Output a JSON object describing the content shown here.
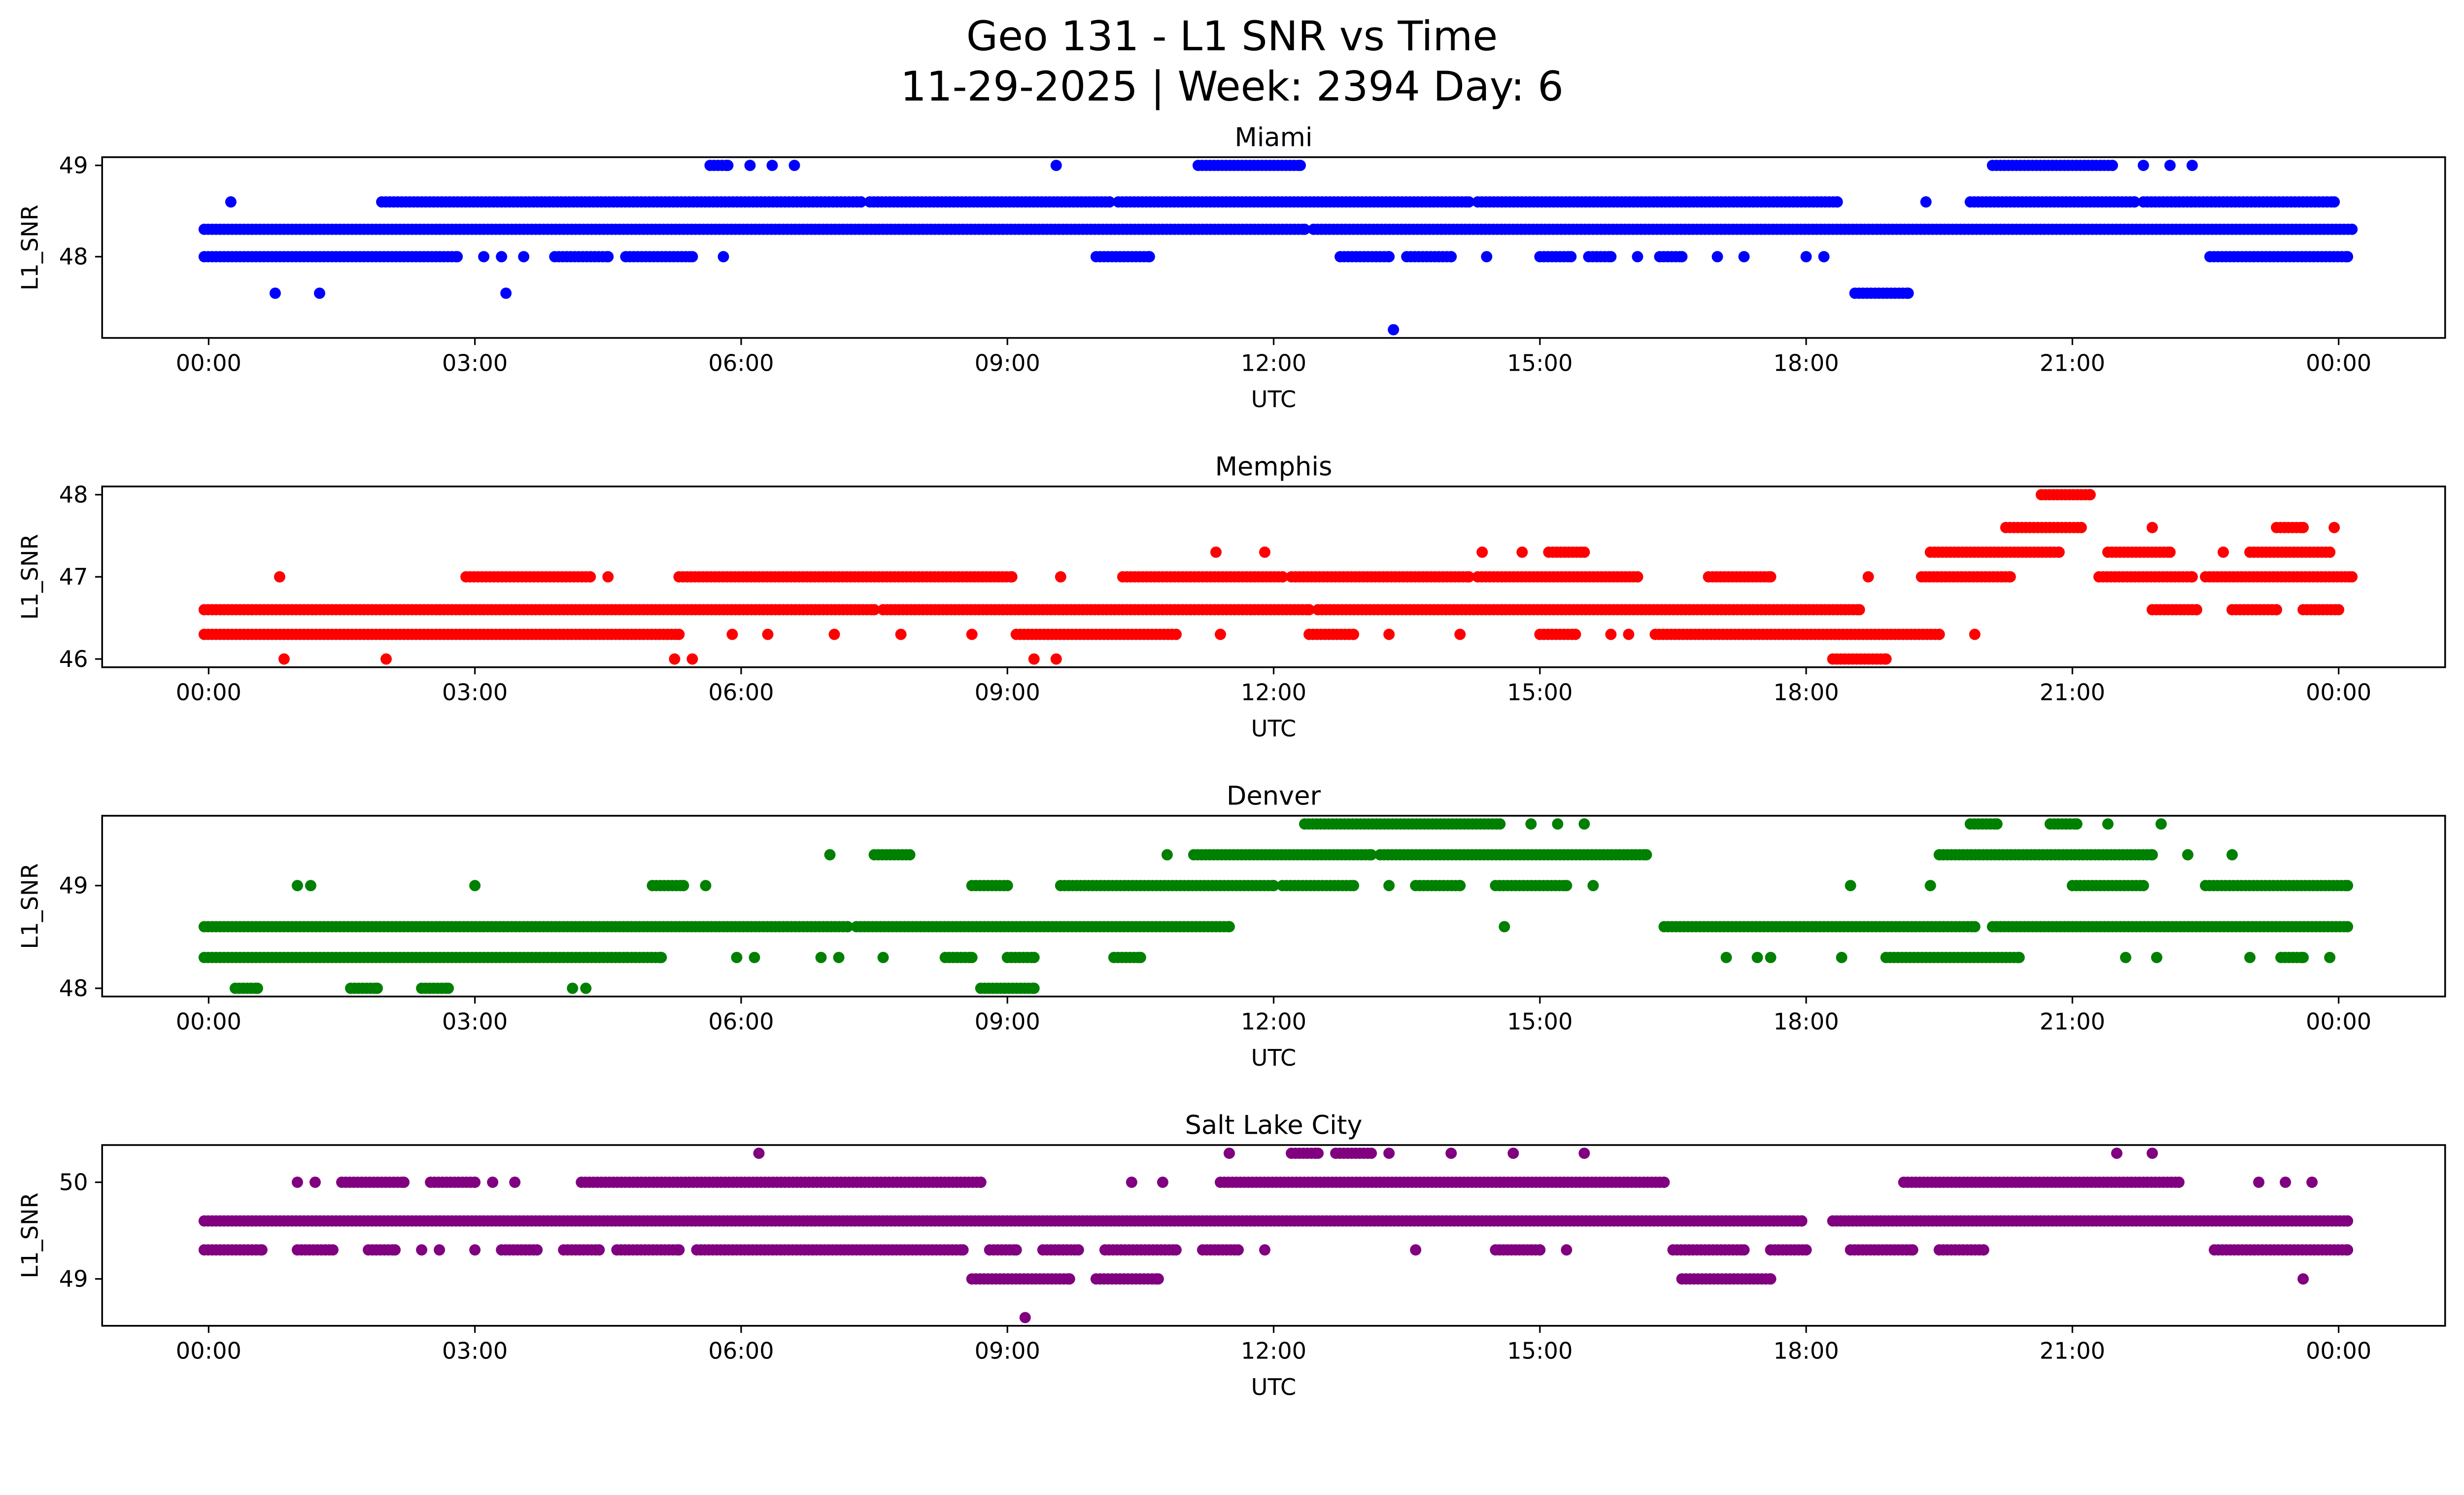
{
  "figure": {
    "title": "Geo 131 - L1 SNR vs Time",
    "subtitle": "11-29-2025 | Week: 2394 Day: 6"
  },
  "chart_data": [
    {
      "type": "scatter",
      "title": "Miami",
      "color": "#0000ff",
      "xlabel": "UTC",
      "ylabel": "L1_SNR",
      "xlim": [
        -1.2,
        25.2
      ],
      "ylim": [
        47.11,
        49.09
      ],
      "yticks": [
        48,
        49
      ],
      "xticks": [
        0,
        3,
        6,
        9,
        12,
        15,
        18,
        21,
        24
      ],
      "xtick_labels": [
        "00:00",
        "03:00",
        "06:00",
        "09:00",
        "12:00",
        "15:00",
        "18:00",
        "21:00",
        "00:00"
      ],
      "grid": false,
      "legend": null,
      "segments": [
        [
          49.0,
          5.65,
          5.85
        ],
        [
          49.0,
          11.15,
          12.3
        ],
        [
          49.0,
          20.1,
          21.45
        ],
        [
          48.6,
          1.95,
          7.35
        ],
        [
          48.6,
          7.45,
          10.15
        ],
        [
          48.6,
          10.25,
          14.2
        ],
        [
          48.6,
          14.3,
          18.35
        ],
        [
          48.6,
          19.85,
          21.7
        ],
        [
          48.6,
          21.8,
          23.95
        ],
        [
          48.3,
          -0.05,
          12.35
        ],
        [
          48.3,
          12.45,
          24.15
        ],
        [
          48.0,
          -0.05,
          2.8
        ],
        [
          48.0,
          3.9,
          4.5
        ],
        [
          48.0,
          4.7,
          5.45
        ],
        [
          48.0,
          10.0,
          10.6
        ],
        [
          48.0,
          12.75,
          13.3
        ],
        [
          48.0,
          13.5,
          14.0
        ],
        [
          48.0,
          15.0,
          15.35
        ],
        [
          48.0,
          15.55,
          15.8
        ],
        [
          48.0,
          16.35,
          16.6
        ],
        [
          48.0,
          22.55,
          24.1
        ],
        [
          47.6,
          18.55,
          19.15
        ]
      ],
      "points": [
        [
          0.25,
          48.6
        ],
        [
          6.1,
          49.0
        ],
        [
          6.35,
          49.0
        ],
        [
          6.6,
          49.0
        ],
        [
          9.55,
          49.0
        ],
        [
          21.8,
          49.0
        ],
        [
          22.1,
          49.0
        ],
        [
          22.35,
          49.0
        ],
        [
          19.35,
          48.6
        ],
        [
          3.1,
          48.0
        ],
        [
          3.3,
          48.0
        ],
        [
          3.55,
          48.0
        ],
        [
          5.8,
          48.0
        ],
        [
          14.4,
          48.0
        ],
        [
          16.1,
          48.0
        ],
        [
          17.0,
          48.0
        ],
        [
          17.3,
          48.0
        ],
        [
          18.0,
          48.0
        ],
        [
          18.2,
          48.0
        ],
        [
          0.75,
          47.6
        ],
        [
          1.25,
          47.6
        ],
        [
          3.35,
          47.6
        ],
        [
          13.35,
          47.2
        ]
      ]
    },
    {
      "type": "scatter",
      "title": "Memphis",
      "color": "#ff0000",
      "xlabel": "UTC",
      "ylabel": "L1_SNR",
      "xlim": [
        -1.2,
        25.2
      ],
      "ylim": [
        45.9,
        48.1
      ],
      "yticks": [
        46,
        47,
        48
      ],
      "xticks": [
        0,
        3,
        6,
        9,
        12,
        15,
        18,
        21,
        24
      ],
      "xtick_labels": [
        "00:00",
        "03:00",
        "06:00",
        "09:00",
        "12:00",
        "15:00",
        "18:00",
        "21:00",
        "00:00"
      ],
      "grid": false,
      "legend": null,
      "segments": [
        [
          48.0,
          20.65,
          21.2
        ],
        [
          47.6,
          20.25,
          21.1
        ],
        [
          47.6,
          23.3,
          23.6
        ],
        [
          47.3,
          15.1,
          15.5
        ],
        [
          47.3,
          19.4,
          20.85
        ],
        [
          47.3,
          21.4,
          22.1
        ],
        [
          47.3,
          23.0,
          23.9
        ],
        [
          47.0,
          2.9,
          4.3
        ],
        [
          47.0,
          5.3,
          9.05
        ],
        [
          47.0,
          10.3,
          12.1
        ],
        [
          47.0,
          12.2,
          14.2
        ],
        [
          47.0,
          14.3,
          16.1
        ],
        [
          47.0,
          16.9,
          17.6
        ],
        [
          47.0,
          19.3,
          20.3
        ],
        [
          47.0,
          21.3,
          22.35
        ],
        [
          47.0,
          22.5,
          24.15
        ],
        [
          46.6,
          -0.05,
          7.5
        ],
        [
          46.6,
          7.6,
          12.4
        ],
        [
          46.6,
          12.5,
          18.6
        ],
        [
          46.6,
          21.9,
          22.4
        ],
        [
          46.6,
          22.8,
          23.3
        ],
        [
          46.6,
          23.6,
          24.0
        ],
        [
          46.3,
          -0.05,
          5.3
        ],
        [
          46.3,
          9.1,
          10.9
        ],
        [
          46.3,
          12.4,
          12.9
        ],
        [
          46.3,
          15.0,
          15.4
        ],
        [
          46.3,
          16.3,
          19.5
        ],
        [
          46.0,
          18.3,
          18.9
        ]
      ],
      "points": [
        [
          0.8,
          47.0
        ],
        [
          4.5,
          47.0
        ],
        [
          9.6,
          47.0
        ],
        [
          18.7,
          47.0
        ],
        [
          11.35,
          47.3
        ],
        [
          11.9,
          47.3
        ],
        [
          14.35,
          47.3
        ],
        [
          14.8,
          47.3
        ],
        [
          22.7,
          47.3
        ],
        [
          21.9,
          47.6
        ],
        [
          23.95,
          47.6
        ],
        [
          5.9,
          46.3
        ],
        [
          6.3,
          46.3
        ],
        [
          7.05,
          46.3
        ],
        [
          7.8,
          46.3
        ],
        [
          8.6,
          46.3
        ],
        [
          11.4,
          46.3
        ],
        [
          13.3,
          46.3
        ],
        [
          14.1,
          46.3
        ],
        [
          15.8,
          46.3
        ],
        [
          16.0,
          46.3
        ],
        [
          19.9,
          46.3
        ],
        [
          0.85,
          46.0
        ],
        [
          2.0,
          46.0
        ],
        [
          5.25,
          46.0
        ],
        [
          5.45,
          46.0
        ],
        [
          9.3,
          46.0
        ],
        [
          9.55,
          46.0
        ]
      ]
    },
    {
      "type": "scatter",
      "title": "Denver",
      "color": "#008000",
      "xlabel": "UTC",
      "ylabel": "L1_SNR",
      "xlim": [
        -1.2,
        25.2
      ],
      "ylim": [
        47.92,
        49.68
      ],
      "yticks": [
        48,
        49
      ],
      "xticks": [
        0,
        3,
        6,
        9,
        12,
        15,
        18,
        21,
        24
      ],
      "xtick_labels": [
        "00:00",
        "03:00",
        "06:00",
        "09:00",
        "12:00",
        "15:00",
        "18:00",
        "21:00",
        "00:00"
      ],
      "grid": false,
      "legend": null,
      "segments": [
        [
          49.6,
          12.35,
          14.55
        ],
        [
          49.6,
          19.85,
          20.15
        ],
        [
          49.6,
          20.75,
          21.05
        ],
        [
          49.3,
          7.5,
          7.9
        ],
        [
          49.3,
          11.1,
          13.1
        ],
        [
          49.3,
          13.2,
          16.2
        ],
        [
          49.3,
          19.5,
          21.9
        ],
        [
          49.0,
          5.0,
          5.35
        ],
        [
          49.0,
          8.6,
          9.0
        ],
        [
          49.0,
          9.6,
          12.0
        ],
        [
          49.0,
          12.1,
          12.9
        ],
        [
          49.0,
          13.6,
          14.1
        ],
        [
          49.0,
          14.5,
          15.3
        ],
        [
          49.0,
          21.0,
          21.8
        ],
        [
          49.0,
          22.5,
          24.1
        ],
        [
          48.6,
          -0.05,
          7.2
        ],
        [
          48.6,
          7.3,
          11.5
        ],
        [
          48.6,
          16.4,
          19.9
        ],
        [
          48.6,
          20.1,
          24.1
        ],
        [
          48.3,
          -0.05,
          5.1
        ],
        [
          48.3,
          8.3,
          8.6
        ],
        [
          48.3,
          9.0,
          9.3
        ],
        [
          48.3,
          10.2,
          10.5
        ],
        [
          48.3,
          18.9,
          20.4
        ],
        [
          48.3,
          23.35,
          23.6
        ],
        [
          48.0,
          0.3,
          0.55
        ],
        [
          48.0,
          1.6,
          1.9
        ],
        [
          48.0,
          2.4,
          2.7
        ],
        [
          48.0,
          8.7,
          9.3
        ]
      ],
      "points": [
        [
          14.9,
          49.6
        ],
        [
          15.2,
          49.6
        ],
        [
          15.5,
          49.6
        ],
        [
          21.4,
          49.6
        ],
        [
          22.0,
          49.6
        ],
        [
          7.0,
          49.3
        ],
        [
          10.8,
          49.3
        ],
        [
          22.3,
          49.3
        ],
        [
          22.8,
          49.3
        ],
        [
          1.0,
          49.0
        ],
        [
          1.15,
          49.0
        ],
        [
          3.0,
          49.0
        ],
        [
          5.6,
          49.0
        ],
        [
          13.3,
          49.0
        ],
        [
          15.6,
          49.0
        ],
        [
          18.5,
          49.0
        ],
        [
          19.4,
          49.0
        ],
        [
          14.6,
          48.6
        ],
        [
          5.95,
          48.3
        ],
        [
          6.15,
          48.3
        ],
        [
          6.9,
          48.3
        ],
        [
          7.1,
          48.3
        ],
        [
          7.6,
          48.3
        ],
        [
          17.1,
          48.3
        ],
        [
          17.45,
          48.3
        ],
        [
          17.6,
          48.3
        ],
        [
          18.4,
          48.3
        ],
        [
          21.6,
          48.3
        ],
        [
          21.95,
          48.3
        ],
        [
          23.0,
          48.3
        ],
        [
          23.9,
          48.3
        ],
        [
          4.1,
          48.0
        ],
        [
          4.25,
          48.0
        ]
      ]
    },
    {
      "type": "scatter",
      "title": "Salt Lake City",
      "color": "#800080",
      "xlabel": "UTC",
      "ylabel": "L1_SNR",
      "xlim": [
        -1.2,
        25.2
      ],
      "ylim": [
        48.515,
        50.385
      ],
      "yticks": [
        49,
        50
      ],
      "xticks": [
        0,
        3,
        6,
        9,
        12,
        15,
        18,
        21,
        24
      ],
      "xtick_labels": [
        "00:00",
        "03:00",
        "06:00",
        "09:00",
        "12:00",
        "15:00",
        "18:00",
        "21:00",
        "00:00"
      ],
      "grid": false,
      "legend": null,
      "segments": [
        [
          50.3,
          12.2,
          12.5
        ],
        [
          50.3,
          12.7,
          13.1
        ],
        [
          50.0,
          1.5,
          2.2
        ],
        [
          50.0,
          2.5,
          3.0
        ],
        [
          50.0,
          4.2,
          8.7
        ],
        [
          50.0,
          11.4,
          16.4
        ],
        [
          50.0,
          19.1,
          22.2
        ],
        [
          49.6,
          -0.05,
          17.95
        ],
        [
          49.6,
          18.3,
          24.1
        ],
        [
          49.3,
          -0.05,
          0.6
        ],
        [
          49.3,
          1.0,
          1.4
        ],
        [
          49.3,
          1.8,
          2.1
        ],
        [
          49.3,
          3.3,
          3.7
        ],
        [
          49.3,
          4.0,
          4.4
        ],
        [
          49.3,
          4.6,
          5.3
        ],
        [
          49.3,
          5.5,
          8.5
        ],
        [
          49.3,
          8.8,
          9.1
        ],
        [
          49.3,
          9.4,
          9.8
        ],
        [
          49.3,
          10.1,
          10.9
        ],
        [
          49.3,
          11.2,
          11.6
        ],
        [
          49.3,
          14.5,
          15.0
        ],
        [
          49.3,
          16.5,
          17.3
        ],
        [
          49.3,
          17.6,
          18.0
        ],
        [
          49.3,
          18.5,
          19.2
        ],
        [
          49.3,
          19.5,
          20.0
        ],
        [
          49.3,
          22.6,
          24.1
        ],
        [
          49.0,
          8.6,
          9.7
        ],
        [
          49.0,
          10.0,
          10.7
        ],
        [
          49.0,
          16.6,
          17.6
        ]
      ],
      "points": [
        [
          6.2,
          50.3
        ],
        [
          11.5,
          50.3
        ],
        [
          13.3,
          50.3
        ],
        [
          14.0,
          50.3
        ],
        [
          14.7,
          50.3
        ],
        [
          15.5,
          50.3
        ],
        [
          21.5,
          50.3
        ],
        [
          21.9,
          50.3
        ],
        [
          1.0,
          50.0
        ],
        [
          1.2,
          50.0
        ],
        [
          3.2,
          50.0
        ],
        [
          3.45,
          50.0
        ],
        [
          10.4,
          50.0
        ],
        [
          10.75,
          50.0
        ],
        [
          23.1,
          50.0
        ],
        [
          23.4,
          50.0
        ],
        [
          23.7,
          50.0
        ],
        [
          2.4,
          49.3
        ],
        [
          2.6,
          49.3
        ],
        [
          3.0,
          49.3
        ],
        [
          11.9,
          49.3
        ],
        [
          13.6,
          49.3
        ],
        [
          15.3,
          49.3
        ],
        [
          23.6,
          49.0
        ],
        [
          9.2,
          48.6
        ]
      ]
    }
  ]
}
